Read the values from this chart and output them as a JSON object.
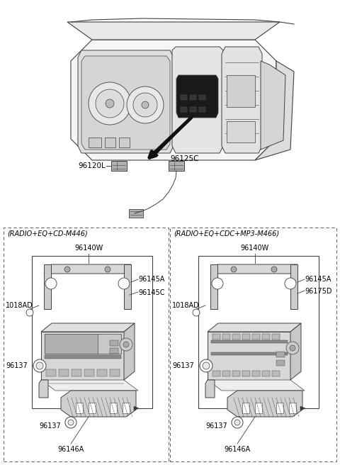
{
  "bg_color": "#ffffff",
  "line_color": "#404040",
  "label_color": "#000000",
  "figsize": [
    4.8,
    6.56
  ],
  "dpi": 100,
  "left_box_title": "(RADIO+EQ+CD-M446)",
  "right_box_title": "(RADIO+EQ+CDC+MP3-M466)",
  "left_label_96140W": "96140W",
  "left_label_1018AD": "1018AD",
  "left_label_96145A": "96145A",
  "left_label_96145C": "96145C",
  "left_label_96137a": "96137",
  "left_label_96137b": "96137",
  "left_label_96146A": "96146A",
  "right_label_96140W": "96140W",
  "right_label_1018AD": "1018AD",
  "right_label_96145A": "96145A",
  "right_label_96175D": "96175D",
  "right_label_96137a": "96137",
  "right_label_96137b": "96137",
  "right_label_96146A": "96146A",
  "top_label_96120L": "96120L",
  "top_label_96125C": "96125C"
}
